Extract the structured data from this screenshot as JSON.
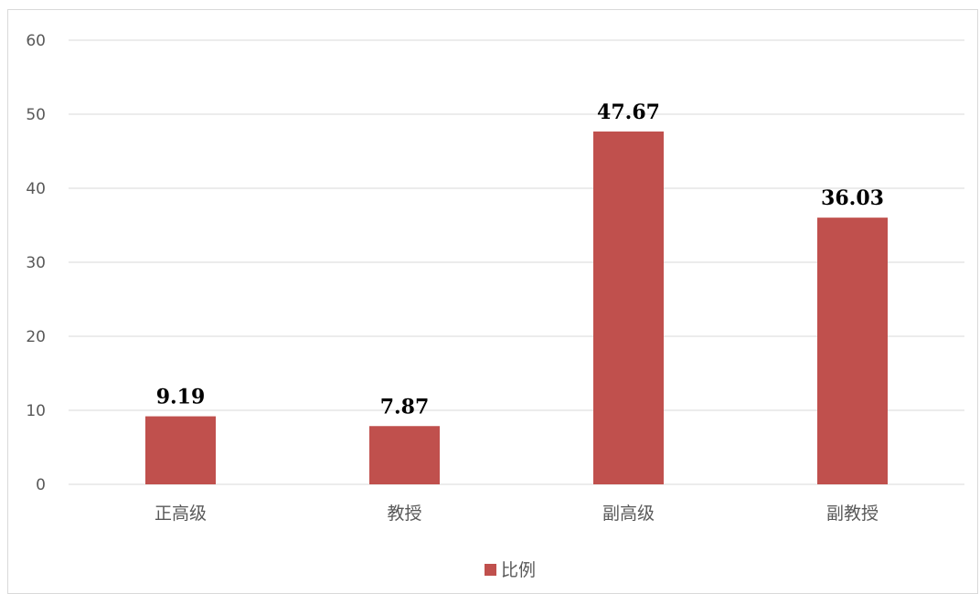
{
  "chart_data": {
    "type": "bar",
    "categories": [
      "正高级",
      "教授",
      "副高级",
      "副教授"
    ],
    "series": [
      {
        "name": "比例",
        "values": [
          9.19,
          7.87,
          47.67,
          36.03
        ],
        "color": "#c0504d"
      }
    ],
    "data_labels": [
      "9.19",
      "7.87",
      "47.67",
      "36.03"
    ],
    "ylim": [
      0,
      60
    ],
    "yticks": [
      0,
      10,
      20,
      30,
      40,
      50,
      60
    ],
    "grid": true,
    "legend": "bottom-center"
  }
}
